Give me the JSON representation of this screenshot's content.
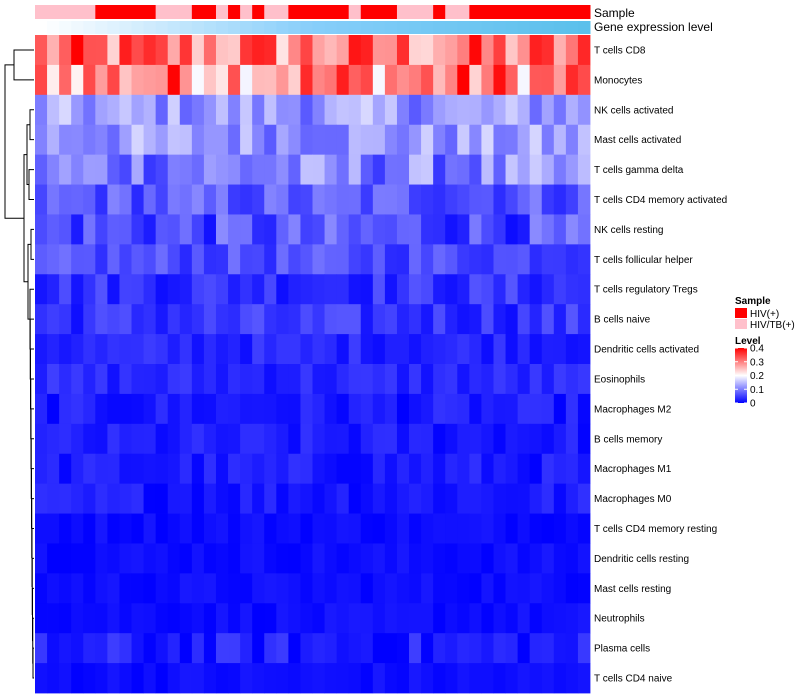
{
  "chart_data": {
    "type": "heatmap",
    "title": "",
    "annotation_tracks": [
      "Sample",
      "Gene expression level"
    ],
    "rows": [
      "T cells CD8",
      "Monocytes",
      "NK cells activated",
      "Mast cells activated",
      "T cells gamma delta",
      "T cells CD4 memory activated",
      "NK cells resting",
      "T cells follicular helper",
      "T cells regulatory  Tregs",
      "B cells naive",
      "Dendritic cells activated",
      "Eosinophils",
      "Macrophages M2",
      "B cells memory",
      "Macrophages M1",
      "Macrophages M0",
      "T cells CD4 memory resting",
      "Dendritic cells resting",
      "Mast cells resting",
      "Neutrophils",
      "Plasma cells",
      "T cells CD4 naive"
    ],
    "n_samples": 46,
    "sample_groups": [
      "HIV/TB(+)",
      "HIV/TB(+)",
      "HIV/TB(+)",
      "HIV/TB(+)",
      "HIV/TB(+)",
      "HIV(+)",
      "HIV(+)",
      "HIV(+)",
      "HIV(+)",
      "HIV(+)",
      "HIV/TB(+)",
      "HIV/TB(+)",
      "HIV/TB(+)",
      "HIV(+)",
      "HIV(+)",
      "HIV/TB(+)",
      "HIV(+)",
      "HIV/TB(+)",
      "HIV(+)",
      "HIV/TB(+)",
      "HIV/TB(+)",
      "HIV(+)",
      "HIV(+)",
      "HIV(+)",
      "HIV(+)",
      "HIV(+)",
      "HIV/TB(+)",
      "HIV(+)",
      "HIV(+)",
      "HIV(+)",
      "HIV/TB(+)",
      "HIV/TB(+)",
      "HIV/TB(+)",
      "HIV(+)",
      "HIV/TB(+)",
      "HIV/TB(+)",
      "HIV(+)",
      "HIV(+)",
      "HIV(+)",
      "HIV(+)",
      "HIV(+)",
      "HIV(+)",
      "HIV(+)",
      "HIV(+)",
      "HIV(+)",
      "HIV(+)"
    ],
    "expression_gradient": [
      "#ffffff",
      "#87cefa",
      "#5bc0eb"
    ],
    "row_levels": [
      0.3,
      0.3,
      0.12,
      0.12,
      0.1,
      0.07,
      0.06,
      0.06,
      0.04,
      0.04,
      0.03,
      0.03,
      0.02,
      0.02,
      0.02,
      0.02,
      0.01,
      0.01,
      0.01,
      0.01,
      0.02,
      0.01
    ],
    "row_spread": [
      0.1,
      0.11,
      0.05,
      0.05,
      0.06,
      0.04,
      0.05,
      0.03,
      0.03,
      0.03,
      0.02,
      0.02,
      0.02,
      0.02,
      0.02,
      0.02,
      0.01,
      0.01,
      0.01,
      0.01,
      0.03,
      0.01
    ],
    "color_scale": {
      "min": 0,
      "max": 0.4,
      "low": "#0000ff",
      "mid": "#ffffff",
      "high": "#ff0000",
      "mid_value": 0.2
    },
    "dendrogram_groups": [
      [
        "T cells CD8",
        "Monocytes"
      ],
      [
        "NK cells activated",
        "Mast cells activated",
        "T cells gamma delta",
        "T cells CD4 memory activated"
      ],
      [
        "NK cells resting",
        "T cells follicular helper"
      ]
    ],
    "legend": {
      "sample_title": "Sample",
      "sample_items": [
        {
          "label": "HIV(+)",
          "color": "#ff0000"
        },
        {
          "label": "HIV/TB(+)",
          "color": "#ffc0cb"
        }
      ],
      "level_title": "Level",
      "level_ticks": [
        {
          "label": "0.4",
          "value": 0.4
        },
        {
          "label": "0.3",
          "value": 0.3
        },
        {
          "label": "0.2",
          "value": 0.2
        },
        {
          "label": "0.1",
          "value": 0.1
        },
        {
          "label": "0",
          "value": 0.0
        }
      ]
    }
  }
}
